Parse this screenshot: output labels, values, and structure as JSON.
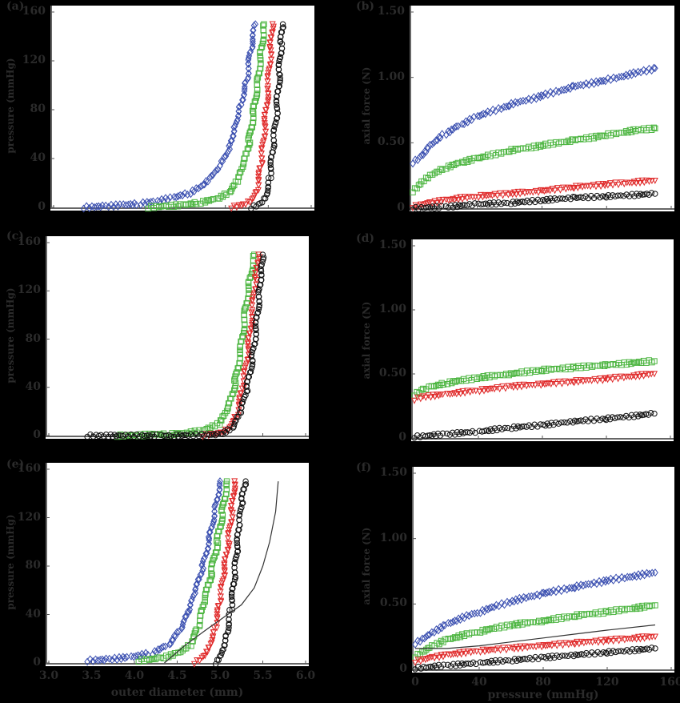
{
  "figure": {
    "background": "#000000",
    "text_color": "#2b2b2b",
    "series_colors": {
      "blue": "#3a4fb0",
      "green": "#4cb540",
      "red": "#e02a2a",
      "black": "#111111"
    }
  },
  "chart_data": [
    {
      "id": "a",
      "panel_label": "(a)",
      "type": "scatter",
      "title": "",
      "xlabel": "",
      "ylabel": "pressure (mmHg)",
      "xlim": [
        3.0,
        6.0
      ],
      "ylim": [
        0,
        160
      ],
      "yticks": [
        "0",
        "40",
        "80",
        "120",
        "160"
      ],
      "xticks": [],
      "grid": false,
      "legend": null,
      "series": [
        {
          "name": "blue",
          "marker": "diamond",
          "color": "#3a4fb0",
          "x": [
            3.35,
            3.6,
            3.8,
            4.0,
            4.2,
            4.4,
            4.6,
            4.75,
            4.85,
            4.95,
            5.05,
            5.1,
            5.18,
            5.25,
            5.3,
            5.35
          ],
          "y": [
            0,
            1,
            2,
            3,
            5,
            8,
            12,
            18,
            25,
            35,
            50,
            65,
            85,
            105,
            130,
            150
          ]
        },
        {
          "name": "green",
          "marker": "square",
          "color": "#4cb540",
          "x": [
            4.1,
            4.3,
            4.5,
            4.7,
            4.9,
            5.05,
            5.15,
            5.22,
            5.28,
            5.33,
            5.38,
            5.42,
            5.45
          ],
          "y": [
            0,
            1,
            2,
            4,
            7,
            12,
            22,
            35,
            55,
            80,
            105,
            130,
            150
          ]
        },
        {
          "name": "red",
          "marker": "triangle-down",
          "color": "#e02a2a",
          "x": [
            5.07,
            5.2,
            5.3,
            5.37,
            5.42,
            5.46,
            5.5,
            5.53,
            5.55
          ],
          "y": [
            0,
            2,
            6,
            15,
            35,
            65,
            100,
            130,
            150
          ]
        },
        {
          "name": "black",
          "marker": "circle",
          "color": "#111111",
          "x": [
            5.3,
            5.4,
            5.47,
            5.52,
            5.56,
            5.6,
            5.63,
            5.65,
            5.67
          ],
          "y": [
            0,
            3,
            10,
            25,
            50,
            80,
            110,
            135,
            150
          ]
        }
      ]
    },
    {
      "id": "b",
      "panel_label": "(b)",
      "type": "scatter",
      "title": "",
      "xlabel": "",
      "ylabel": "axial force (N)",
      "xlim": [
        0,
        160
      ],
      "ylim": [
        0,
        1.5
      ],
      "yticks": [
        "0",
        "0.50",
        "1.00",
        "1.50"
      ],
      "xticks": [],
      "grid": false,
      "legend": null,
      "series": [
        {
          "name": "blue",
          "marker": "diamond",
          "color": "#3a4fb0",
          "x": [
            0,
            5,
            10,
            20,
            30,
            40,
            60,
            80,
            100,
            120,
            140,
            150
          ],
          "y": [
            0.35,
            0.4,
            0.48,
            0.57,
            0.64,
            0.7,
            0.79,
            0.86,
            0.93,
            0.98,
            1.04,
            1.07
          ]
        },
        {
          "name": "green",
          "marker": "square",
          "color": "#4cb540",
          "x": [
            0,
            5,
            10,
            20,
            30,
            40,
            60,
            80,
            100,
            120,
            140,
            150
          ],
          "y": [
            0.13,
            0.2,
            0.25,
            0.31,
            0.35,
            0.38,
            0.44,
            0.48,
            0.52,
            0.56,
            0.6,
            0.61
          ]
        },
        {
          "name": "red",
          "marker": "triangle-down",
          "color": "#e02a2a",
          "x": [
            0,
            10,
            20,
            40,
            60,
            80,
            100,
            120,
            150
          ],
          "y": [
            0.01,
            0.04,
            0.06,
            0.09,
            0.11,
            0.13,
            0.16,
            0.18,
            0.21
          ]
        },
        {
          "name": "black",
          "marker": "circle",
          "color": "#111111",
          "x": [
            0,
            20,
            40,
            60,
            80,
            100,
            120,
            150
          ],
          "y": [
            0.0,
            0.01,
            0.03,
            0.04,
            0.06,
            0.08,
            0.09,
            0.11
          ]
        }
      ]
    },
    {
      "id": "c",
      "panel_label": "(c)",
      "type": "scatter",
      "title": "",
      "xlabel": "",
      "ylabel": "pressure (mmHg)",
      "xlim": [
        3.0,
        6.0
      ],
      "ylim": [
        0,
        160
      ],
      "yticks": [
        "0",
        "40",
        "80",
        "120",
        "160"
      ],
      "xticks": [],
      "grid": false,
      "legend": null,
      "series": [
        {
          "name": "green",
          "marker": "square",
          "color": "#4cb540",
          "x": [
            3.8,
            4.0,
            4.2,
            4.4,
            4.6,
            4.8,
            5.0,
            5.1,
            5.18,
            5.25,
            5.3,
            5.35,
            5.4
          ],
          "y": [
            0,
            0,
            1,
            1,
            2,
            4,
            10,
            22,
            45,
            75,
            105,
            130,
            150
          ]
        },
        {
          "name": "red",
          "marker": "triangle-down",
          "color": "#e02a2a",
          "x": [
            4.8,
            5.0,
            5.1,
            5.2,
            5.27,
            5.33,
            5.38,
            5.42,
            5.45
          ],
          "y": [
            0,
            2,
            6,
            18,
            40,
            70,
            105,
            130,
            150
          ]
        },
        {
          "name": "black",
          "marker": "circle",
          "color": "#111111",
          "x": [
            3.45,
            3.6,
            4.3,
            4.45,
            5.0,
            5.15,
            5.25,
            5.32,
            5.38,
            5.43,
            5.46,
            5.48,
            5.5
          ],
          "y": [
            0,
            0,
            0,
            0,
            1,
            6,
            20,
            40,
            65,
            95,
            120,
            140,
            150
          ]
        }
      ]
    },
    {
      "id": "d",
      "panel_label": "(d)",
      "type": "scatter",
      "title": "",
      "xlabel": "",
      "ylabel": "axial force (N)",
      "xlim": [
        0,
        160
      ],
      "ylim": [
        0,
        1.5
      ],
      "yticks": [
        "0",
        "0.50",
        "1.00",
        "1.50"
      ],
      "xticks": [],
      "grid": false,
      "legend": null,
      "series": [
        {
          "name": "green",
          "marker": "square",
          "color": "#4cb540",
          "x": [
            0,
            5,
            10,
            20,
            40,
            60,
            80,
            100,
            120,
            150
          ],
          "y": [
            0.34,
            0.38,
            0.4,
            0.43,
            0.47,
            0.5,
            0.53,
            0.55,
            0.57,
            0.6
          ]
        },
        {
          "name": "red",
          "marker": "triangle-down",
          "color": "#e02a2a",
          "x": [
            0,
            5,
            20,
            40,
            60,
            80,
            100,
            120,
            150
          ],
          "y": [
            0.3,
            0.32,
            0.34,
            0.37,
            0.4,
            0.42,
            0.44,
            0.46,
            0.5
          ]
        },
        {
          "name": "black",
          "marker": "circle",
          "color": "#111111",
          "x": [
            0,
            20,
            40,
            60,
            80,
            100,
            120,
            150
          ],
          "y": [
            0.01,
            0.03,
            0.05,
            0.08,
            0.1,
            0.13,
            0.15,
            0.19
          ]
        }
      ]
    },
    {
      "id": "e",
      "panel_label": "(e)",
      "type": "scatter",
      "title": "",
      "xlabel": "outer diameter (mm)",
      "ylabel": "pressure (mmHg)",
      "xlim": [
        3.0,
        6.0
      ],
      "ylim": [
        0,
        160
      ],
      "yticks": [
        "0",
        "40",
        "80",
        "120",
        "160"
      ],
      "xticks": [
        "3.0",
        "3.5",
        "4.0",
        "4.5",
        "5.0",
        "5.5",
        "6.0"
      ],
      "grid": false,
      "legend": null,
      "series": [
        {
          "name": "blue",
          "marker": "diamond",
          "color": "#3a4fb0",
          "x": [
            3.45,
            3.7,
            3.95,
            4.2,
            4.4,
            4.55,
            4.65,
            4.72,
            4.8,
            4.88,
            4.95,
            5.0
          ],
          "y": [
            2,
            3,
            5,
            8,
            15,
            28,
            45,
            60,
            80,
            105,
            130,
            150
          ]
        },
        {
          "name": "green",
          "marker": "square",
          "color": "#4cb540",
          "x": [
            4.05,
            4.3,
            4.5,
            4.65,
            4.75,
            4.82,
            4.9,
            4.97,
            5.03,
            5.08
          ],
          "y": [
            2,
            4,
            8,
            15,
            30,
            50,
            75,
            100,
            125,
            150
          ]
        },
        {
          "name": "red",
          "marker": "triangle-down",
          "color": "#e02a2a",
          "x": [
            4.7,
            4.8,
            4.88,
            4.95,
            5.0,
            5.05,
            5.1,
            5.14,
            5.17
          ],
          "y": [
            0,
            5,
            15,
            30,
            50,
            75,
            100,
            125,
            150
          ]
        },
        {
          "name": "black",
          "marker": "circle",
          "color": "#111111",
          "x": [
            4.95,
            5.02,
            5.08,
            5.13,
            5.17,
            5.2,
            5.23,
            5.26,
            5.3
          ],
          "y": [
            0,
            10,
            25,
            45,
            70,
            95,
            115,
            135,
            150
          ]
        },
        {
          "name": "model",
          "marker": "line",
          "color": "#333333",
          "x": [
            4.35,
            4.6,
            4.85,
            5.05,
            5.25,
            5.4,
            5.5,
            5.58,
            5.65,
            5.68
          ],
          "y": [
            0,
            15,
            28,
            38,
            48,
            62,
            80,
            100,
            125,
            150
          ]
        }
      ]
    },
    {
      "id": "f",
      "panel_label": "(f)",
      "type": "scatter",
      "title": "",
      "xlabel": "pressure (mmHg)",
      "ylabel": "axial force (N)",
      "xlim": [
        0,
        160
      ],
      "ylim": [
        0,
        1.5
      ],
      "yticks": [
        "0",
        "0.50",
        "1.00",
        "1.50"
      ],
      "xticks": [
        "0",
        "40",
        "80",
        "120",
        "160"
      ],
      "grid": false,
      "legend": null,
      "series": [
        {
          "name": "blue",
          "marker": "diamond",
          "color": "#3a4fb0",
          "x": [
            0,
            10,
            20,
            40,
            60,
            80,
            100,
            120,
            150
          ],
          "y": [
            0.2,
            0.28,
            0.35,
            0.44,
            0.52,
            0.58,
            0.63,
            0.68,
            0.74
          ]
        },
        {
          "name": "green",
          "marker": "square",
          "color": "#4cb540",
          "x": [
            0,
            10,
            20,
            40,
            60,
            80,
            100,
            120,
            150
          ],
          "y": [
            0.1,
            0.18,
            0.23,
            0.29,
            0.34,
            0.37,
            0.41,
            0.44,
            0.49
          ]
        },
        {
          "name": "red",
          "marker": "triangle-down",
          "color": "#e02a2a",
          "x": [
            0,
            10,
            20,
            40,
            60,
            80,
            100,
            120,
            150
          ],
          "y": [
            0.06,
            0.09,
            0.11,
            0.14,
            0.16,
            0.18,
            0.2,
            0.22,
            0.25
          ]
        },
        {
          "name": "black",
          "marker": "circle",
          "color": "#111111",
          "x": [
            0,
            20,
            40,
            60,
            80,
            100,
            120,
            150
          ],
          "y": [
            0.01,
            0.03,
            0.05,
            0.07,
            0.09,
            0.11,
            0.13,
            0.16
          ]
        },
        {
          "name": "model",
          "marker": "line",
          "color": "#333333",
          "x": [
            0,
            20,
            40,
            60,
            80,
            100,
            120,
            150
          ],
          "y": [
            0.16,
            0.16,
            0.18,
            0.21,
            0.24,
            0.27,
            0.3,
            0.34
          ]
        }
      ]
    }
  ]
}
